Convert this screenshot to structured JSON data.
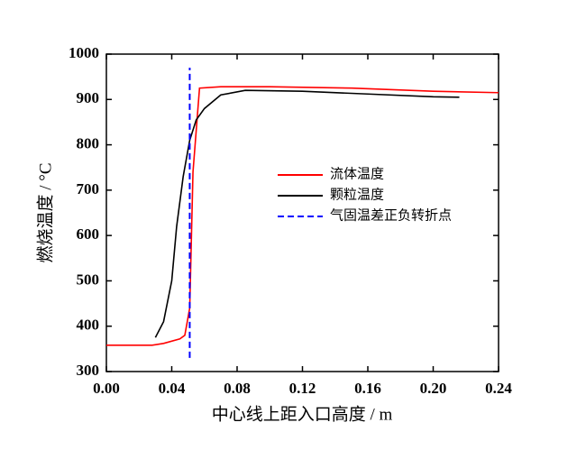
{
  "chart_data": {
    "type": "line",
    "x_label": "中心线上距入口高度 / m",
    "y_label": "燃烧温度 / °C",
    "xlim": [
      0,
      0.24
    ],
    "xticks": [
      {
        "value": 0,
        "label": "0.00"
      },
      {
        "value": 0.04,
        "label": "0.04"
      },
      {
        "value": 0.08,
        "label": "0.08"
      },
      {
        "value": 0.12,
        "label": "0.12"
      },
      {
        "value": 0.16,
        "label": "0.16"
      },
      {
        "value": 0.2,
        "label": "0.20"
      },
      {
        "value": 0.24,
        "label": "0.24"
      }
    ],
    "ylim": [
      300,
      1000
    ],
    "yticks": [
      300,
      400,
      500,
      600,
      700,
      800,
      900,
      1000
    ],
    "series": [
      {
        "name": "流体温度",
        "color": "#ff0000",
        "dash": false,
        "x": [
          0,
          0.028,
          0.035,
          0.045,
          0.048,
          0.051,
          0.053,
          0.057,
          0.07,
          0.1,
          0.15,
          0.2,
          0.24
        ],
        "values": [
          358,
          358,
          362,
          372,
          380,
          440,
          740,
          925,
          928,
          928,
          925,
          918,
          915
        ]
      },
      {
        "name": "颗粒温度",
        "color": "#000000",
        "dash": false,
        "x": [
          0.03,
          0.035,
          0.04,
          0.043,
          0.047,
          0.051,
          0.055,
          0.06,
          0.07,
          0.085,
          0.12,
          0.16,
          0.2,
          0.216
        ],
        "values": [
          375,
          410,
          500,
          620,
          730,
          810,
          855,
          880,
          910,
          920,
          918,
          912,
          906,
          905
        ]
      },
      {
        "name": "气固温差正负转折点",
        "color": "#0000ff",
        "dash": true,
        "x": [
          0.051,
          0.051
        ],
        "values": [
          330,
          970
        ]
      }
    ]
  }
}
